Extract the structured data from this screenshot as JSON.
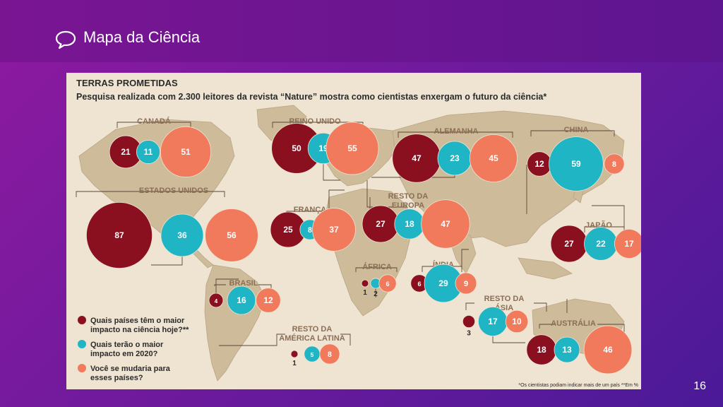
{
  "header": {
    "title": "Mapa da Ciência",
    "icon": "speech-bubble-icon"
  },
  "page_number": "16",
  "colors": {
    "current": "#8a1020",
    "future": "#1fb5c4",
    "move": "#f27a5c",
    "label": "#8a6e55",
    "map": "#cdbb9a",
    "sea": "#efe4d2"
  },
  "chart_data": {
    "type": "bubble-map",
    "title": "TERRAS PROMETIDAS",
    "subtitle": "Pesquisa realizada com 2.300 leitores da revista “Nature” mostra como cientistas enxergam o futuro da ciência*",
    "series": [
      {
        "name": "Quais países têm o maior impacto na ciência hoje?**",
        "key": "current"
      },
      {
        "name": "Quais terão o maior impacto em 2020?",
        "key": "future"
      },
      {
        "name": "Você se mudaria para esses países?",
        "key": "move"
      }
    ],
    "regions": [
      {
        "name": "CANADÁ",
        "values": [
          21,
          11,
          51
        ]
      },
      {
        "name": "REINO UNIDO",
        "values": [
          50,
          19,
          55
        ]
      },
      {
        "name": "ALEMANHA",
        "values": [
          47,
          23,
          45
        ]
      },
      {
        "name": "CHINA",
        "values": [
          12,
          59,
          8
        ]
      },
      {
        "name": "ESTADOS UNIDOS",
        "values": [
          87,
          36,
          56
        ]
      },
      {
        "name": "FRANÇA",
        "values": [
          25,
          8,
          37
        ]
      },
      {
        "name": "RESTO DA EUROPA",
        "values": [
          27,
          18,
          47
        ]
      },
      {
        "name": "JAPÃO",
        "values": [
          27,
          22,
          17
        ]
      },
      {
        "name": "ÁFRICA",
        "values": [
          1,
          2,
          6
        ]
      },
      {
        "name": "ÍNDIA",
        "values": [
          6,
          29,
          9
        ]
      },
      {
        "name": "BRASIL",
        "values": [
          4,
          16,
          12
        ]
      },
      {
        "name": "RESTO DA ÁSIA",
        "values": [
          3,
          17,
          10
        ]
      },
      {
        "name": "RESTO DA AMÉRICA LATINA",
        "values": [
          1,
          5,
          8
        ]
      },
      {
        "name": "AUSTRÁLIA",
        "values": [
          18,
          13,
          46
        ]
      }
    ],
    "footnote": "*Os cientistas podiam indicar mais de um país   **Em %"
  }
}
